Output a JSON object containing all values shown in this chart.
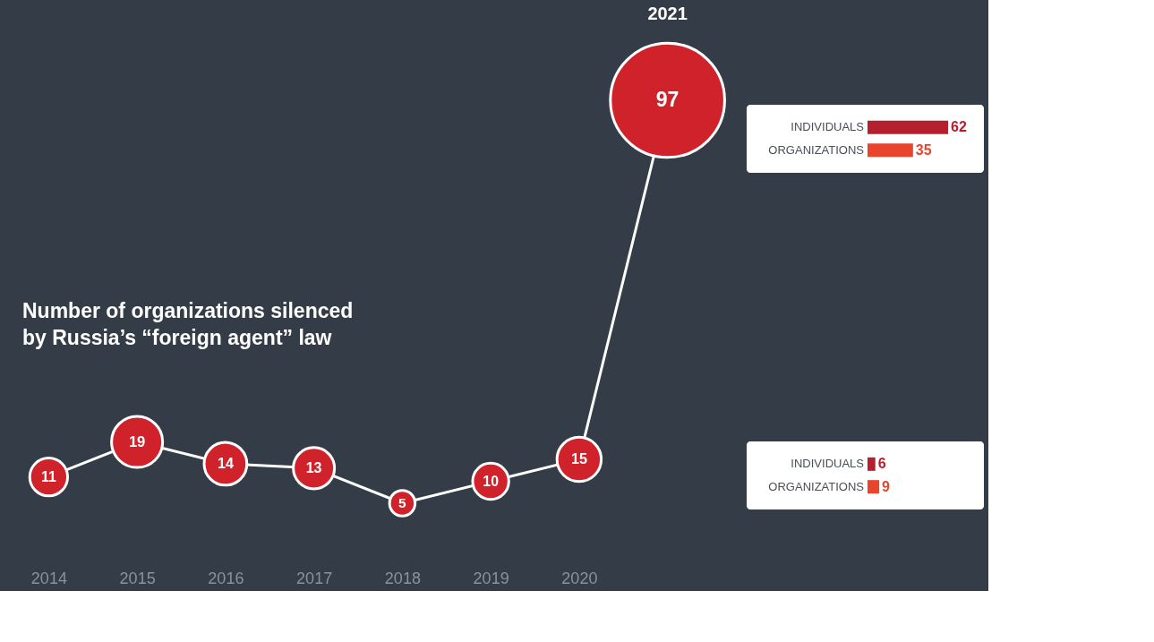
{
  "chart_data": [
    {
      "type": "bubble",
      "title": "Number of organizations silenced by Russia’s “foreign agent” law",
      "categories": [
        "2014",
        "2015",
        "2016",
        "2017",
        "2018",
        "2019",
        "2020",
        null
      ],
      "annotations": [
        "2021"
      ],
      "values": [
        11,
        19,
        14,
        13,
        5,
        10,
        15,
        97
      ],
      "sizes": [
        0.11,
        0.2,
        0.14,
        0.13,
        0.05,
        0.1,
        0.15,
        1
      ],
      "color": "#d0222a",
      "line_style": "solid",
      "data_labels": true
    },
    {
      "type": "bar",
      "orientation": "horizontal",
      "categories": [
        "INDIVIDUALS",
        "ORGANIZATIONS"
      ],
      "values": [
        62,
        35
      ],
      "colors": [
        "#b5202e",
        "#e8452c"
      ],
      "data_labels": true
    },
    {
      "type": "bar",
      "orientation": "horizontal",
      "categories": [
        "INDIVIDUALS",
        "ORGANIZATIONS"
      ],
      "values": [
        6,
        9
      ],
      "colors": [
        "#b5202e",
        "#e8452c"
      ],
      "data_labels": true
    }
  ]
}
